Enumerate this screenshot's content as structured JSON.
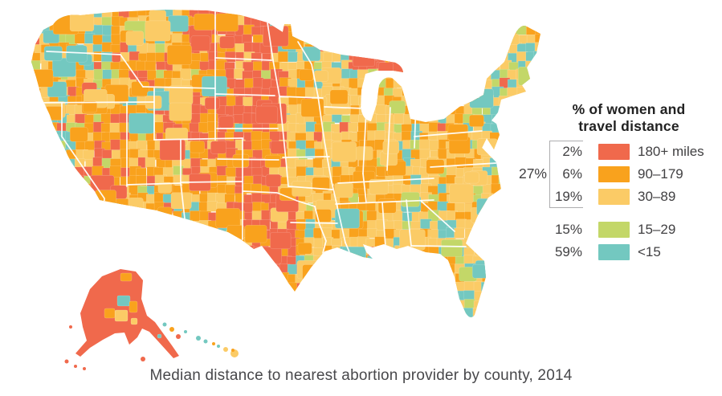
{
  "page": {
    "background": "#FFFFFF"
  },
  "caption": "Median distance to nearest abortion provider by county, 2014",
  "legend": {
    "title_line1": "% of women and",
    "title_line2": "travel distance",
    "bracket_label": "27%",
    "groups": [
      {
        "items": [
          {
            "percent": "2%",
            "label": "180+ miles",
            "color": "#F0694C"
          },
          {
            "percent": "6%",
            "label": "90–179",
            "color": "#F9A21D"
          },
          {
            "percent": "19%",
            "label": "30–89",
            "color": "#FBCB66"
          }
        ]
      },
      {
        "items": [
          {
            "percent": "15%",
            "label": "15–29",
            "color": "#C3D768"
          },
          {
            "percent": "59%",
            "label": "<15",
            "color": "#73C8C0"
          }
        ]
      }
    ]
  },
  "map": {
    "description": "U.S. choropleth by county of median travel distance to nearest abortion provider, including Alaska and Hawaii",
    "colors": {
      "red": "#F0694C",
      "orange": "#F9A21D",
      "yellow": "#FBCB66",
      "green": "#C3D768",
      "teal": "#73C8C0"
    }
  },
  "chart_data": {
    "type": "choropleth_map",
    "title": "% of women and travel distance",
    "caption": "Median distance to nearest abortion provider by county, 2014",
    "unit": "median miles to nearest abortion provider, by county",
    "categories": [
      "180+ miles",
      "90–179",
      "30–89",
      "15–29",
      "<15"
    ],
    "values_percent_of_women": [
      2,
      6,
      19,
      15,
      59
    ],
    "colors": [
      "#F0694C",
      "#F9A21D",
      "#FBCB66",
      "#C3D768",
      "#73C8C0"
    ],
    "bracket": {
      "label": "27%",
      "sum_of": [
        "180+ miles",
        "90–179",
        "30–89"
      ]
    },
    "year": 2014,
    "region": "United States (contiguous states, Alaska, Hawaii)",
    "legend_position": "right"
  }
}
